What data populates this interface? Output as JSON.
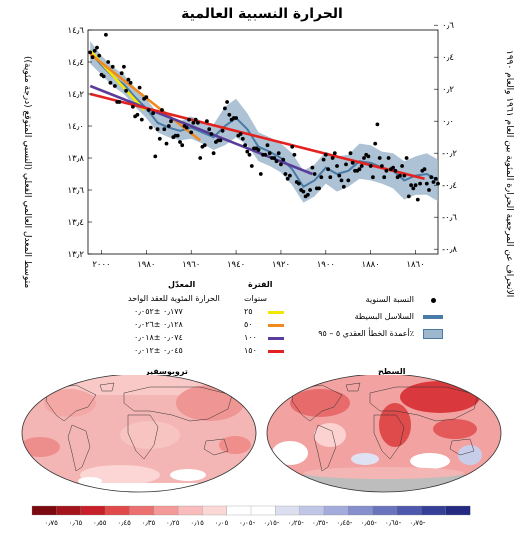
{
  "chart_data": {
    "type": "line",
    "title": "الحرارة النسبية العالمية",
    "ylabel_left": "متوسط المعدل العالمي الفعلي (النسبي المتوقع (درجة مئوية))",
    "ylabel_right": "الانحراف عن المرجعية الحرارة المئوية بين العام ١٩٦١ والعام ١٩٩٠",
    "y_left_ticks": [
      "١٤٫٦",
      "١٤٫٤",
      "١٤٫٢",
      "١٤٫٠",
      "١٣٫٨",
      "١٣٫٦",
      "١٣٫٤",
      "١٣٫٢"
    ],
    "y_left_values": [
      14.6,
      14.4,
      14.2,
      14.0,
      13.8,
      13.6,
      13.4,
      13.2
    ],
    "y_right_ticks": [
      "٠٫٦",
      "٠٫٤",
      "٠٫٢",
      "٠٫٠",
      "-٠٫٢",
      "-٠٫٤",
      "-٠٫٦",
      "-٠٫٨"
    ],
    "x_ticks": [
      "٢٠٠٠",
      "١٩٨٠",
      "١٩٦٠",
      "١٩٤٠",
      "١٩٢٠",
      "١٩٠٠",
      "١٨٨٠",
      "١٨٦٠"
    ],
    "x_values": [
      2000,
      1980,
      1960,
      1940,
      1920,
      1900,
      1880,
      1860
    ],
    "xlim": [
      1850,
      2006
    ],
    "ylim": [
      13.2,
      14.6
    ],
    "annual_years": [
      2005,
      2004,
      2003,
      2002,
      2001,
      2000,
      1999,
      1998,
      1997,
      1996,
      1995,
      1994,
      1993,
      1992,
      1991,
      1990,
      1989,
      1988,
      1987,
      1986,
      1985,
      1984,
      1983,
      1982,
      1981,
      1980,
      1979,
      1978,
      1977,
      1976,
      1975,
      1974,
      1973,
      1972,
      1971,
      1970,
      1969,
      1968,
      1967,
      1966,
      1965,
      1964,
      1963,
      1962,
      1961,
      1960,
      1959,
      1958,
      1957,
      1956,
      1955,
      1954,
      1953,
      1952,
      1951,
      1950,
      1949,
      1948,
      1947,
      1946,
      1945,
      1944,
      1943,
      1942,
      1941,
      1940,
      1939,
      1938,
      1937,
      1936,
      1935,
      1934,
      1933,
      1932,
      1931,
      1930,
      1929,
      1928,
      1927,
      1926,
      1925,
      1924,
      1923,
      1922,
      1921,
      1920,
      1919,
      1918,
      1917,
      1916,
      1915,
      1914,
      1913,
      1912,
      1911,
      1910,
      1909,
      1908,
      1907,
      1906,
      1905,
      1904,
      1903,
      1902,
      1901,
      1900,
      1899,
      1898,
      1897,
      1896,
      1895,
      1894,
      1893,
      1892,
      1891,
      1890,
      1889,
      1888,
      1887,
      1886,
      1885,
      1884,
      1883,
      1882,
      1881,
      1880,
      1879,
      1878,
      1877,
      1876,
      1875,
      1874,
      1873,
      1872,
      1871,
      1870,
      1869,
      1868,
      1867,
      1866,
      1865,
      1864,
      1863,
      1862,
      1861,
      1860,
      1859,
      1858,
      1857,
      1856,
      1855,
      1854,
      1853,
      1852,
      1851,
      1850
    ],
    "annual_values": [
      14.46,
      14.43,
      14.47,
      14.49,
      14.44,
      14.32,
      14.31,
      14.57,
      14.4,
      14.27,
      14.37,
      14.25,
      14.15,
      14.15,
      14.33,
      14.37,
      14.22,
      14.29,
      14.27,
      14.12,
      14.06,
      14.07,
      14.24,
      14.04,
      14.17,
      14.18,
      14.1,
      13.99,
      14.08,
      13.81,
      13.98,
      13.92,
      14.1,
      13.98,
      13.89,
      14.0,
      14.03,
      13.93,
      13.94,
      13.94,
      13.9,
      13.88,
      14.0,
      13.99,
      14.04,
      13.96,
      14.02,
      14.04,
      14.02,
      13.8,
      13.87,
      13.88,
      14.03,
      13.98,
      13.95,
      13.83,
      13.9,
      13.91,
      13.91,
      13.97,
      14.11,
      14.15,
      14.07,
      14.04,
      14.05,
      14.05,
      13.94,
      13.95,
      13.92,
      13.88,
      13.84,
      13.82,
      13.75,
      13.86,
      13.86,
      13.85,
      13.7,
      13.82,
      13.82,
      13.88,
      13.83,
      13.8,
      13.8,
      13.78,
      13.83,
      13.76,
      13.79,
      13.7,
      13.67,
      13.69,
      13.87,
      13.82,
      13.65,
      13.64,
      13.6,
      13.59,
      13.56,
      13.57,
      13.6,
      13.74,
      13.7,
      13.61,
      13.61,
      13.68,
      13.79,
      13.82,
      13.73,
      13.68,
      13.8,
      13.83,
      13.75,
      13.69,
      13.66,
      13.62,
      13.76,
      13.66,
      13.83,
      13.77,
      13.72,
      13.72,
      13.73,
      13.75,
      13.8,
      13.82,
      13.81,
      13.75,
      13.68,
      13.89,
      14.01,
      13.8,
      13.75,
      13.68,
      13.72,
      13.8,
      13.73,
      13.74,
      13.72,
      13.68,
      13.69,
      13.75,
      13.69,
      13.8,
      13.56,
      13.63,
      13.61,
      13.63,
      13.54,
      13.64,
      13.72,
      13.73,
      13.64,
      13.6,
      13.68,
      13.65,
      13.67,
      13.64
    ],
    "smooth_years": [
      2005,
      2000,
      1995,
      1990,
      1985,
      1980,
      1975,
      1970,
      1965,
      1960,
      1955,
      1950,
      1945,
      1940,
      1935,
      1930,
      1925,
      1920,
      1915,
      1910,
      1905,
      1900,
      1895,
      1890,
      1885,
      1880,
      1875,
      1870,
      1865,
      1860,
      1855,
      1850
    ],
    "smooth_values": [
      14.46,
      14.38,
      14.31,
      14.26,
      14.18,
      14.11,
      14.02,
      13.99,
      13.97,
      13.99,
      13.96,
      13.93,
      14.0,
      14.05,
      13.98,
      13.87,
      13.84,
      13.8,
      13.73,
      13.62,
      13.66,
      13.74,
      13.7,
      13.72,
      13.78,
      13.77,
      13.74,
      13.72,
      13.66,
      13.69,
      13.7,
      13.66
    ],
    "smooth_spread": [
      0.07,
      0.06,
      0.06,
      0.06,
      0.06,
      0.06,
      0.06,
      0.06,
      0.06,
      0.07,
      0.07,
      0.08,
      0.12,
      0.12,
      0.1,
      0.09,
      0.09,
      0.09,
      0.1,
      0.1,
      0.1,
      0.1,
      0.11,
      0.1,
      0.11,
      0.11,
      0.1,
      0.11,
      0.12,
      0.12,
      0.13,
      0.13
    ],
    "trend_lines": [
      {
        "period": "٢٥",
        "color": "#f5e600",
        "from_year": 1981,
        "to_year": 2005,
        "from_value": 14.1,
        "to_value": 14.47
      },
      {
        "period": "٥٠",
        "color": "#f08a1e",
        "from_year": 1956,
        "to_year": 2005,
        "from_value": 13.91,
        "to_value": 14.45
      },
      {
        "period": "١٠٠",
        "color": "#5a3d9a",
        "from_year": 1906,
        "to_year": 2005,
        "from_value": 13.7,
        "to_value": 14.25
      },
      {
        "period": "١٥٠",
        "color": "#e3221f",
        "from_year": 1856,
        "to_year": 2005,
        "from_value": 13.67,
        "to_value": 14.2
      }
    ]
  },
  "legend": {
    "header_period": "الفترة",
    "header_period_sub": "سنوات",
    "header_rate": "المعدّل",
    "header_rate_sub": "الحرارة المئوية للعقد الواحد",
    "rows": [
      {
        "period": "٢٥",
        "rate": "٠٫١٧٧ ±٠٫٠٥٢",
        "color": "#f5e600"
      },
      {
        "period": "٥٠",
        "rate": "٠٫١٢٨ ±٠٫٠٢٦",
        "color": "#f08a1e"
      },
      {
        "period": "١٠٠",
        "rate": "٠٫٠٧٤ ±٠٫٠١٨",
        "color": "#5a3d9a"
      },
      {
        "period": "١٥٠",
        "rate": "٠٫٠٤٥ ±٠٫٠١٢",
        "color": "#e3221f"
      }
    ],
    "symbols": [
      {
        "label": "النسبة السنوية",
        "kind": "dot"
      },
      {
        "label": "السلاسل البسيطة",
        "kind": "line"
      },
      {
        "label": "أعمدة الخطأ العقدي ٥ – ٩٥٪",
        "kind": "band"
      }
    ]
  },
  "maps": {
    "left_title": "تروبوسفير",
    "right_title": "السطح"
  },
  "colorbar": {
    "colors": [
      "#7a0a10",
      "#a3141c",
      "#c8202a",
      "#e04a4a",
      "#ec7070",
      "#f49a98",
      "#f8bcbc",
      "#fbd8d6",
      "#ffffff",
      "#ffffff",
      "#dcdff0",
      "#c0c6e6",
      "#a3acdb",
      "#8590cd",
      "#6a74bd",
      "#4e58ac",
      "#363f98",
      "#232a80"
    ],
    "labels": [
      "٠٫٧٥",
      "٠٫٦٥",
      "٠٫٥٥",
      "٠٫٤٥",
      "٠٫٣٥",
      "٠٫٢٥",
      "٠٫١٥",
      "٠٫٠٥",
      "٠٫٠٥-",
      "٠٫١٥-",
      "٠٫٢٥-",
      "٠٫٣٥-",
      "٠٫٤٥-",
      "٠٫٥٥-",
      "٠٫٦٥-",
      "٠٫٧٥-"
    ]
  }
}
